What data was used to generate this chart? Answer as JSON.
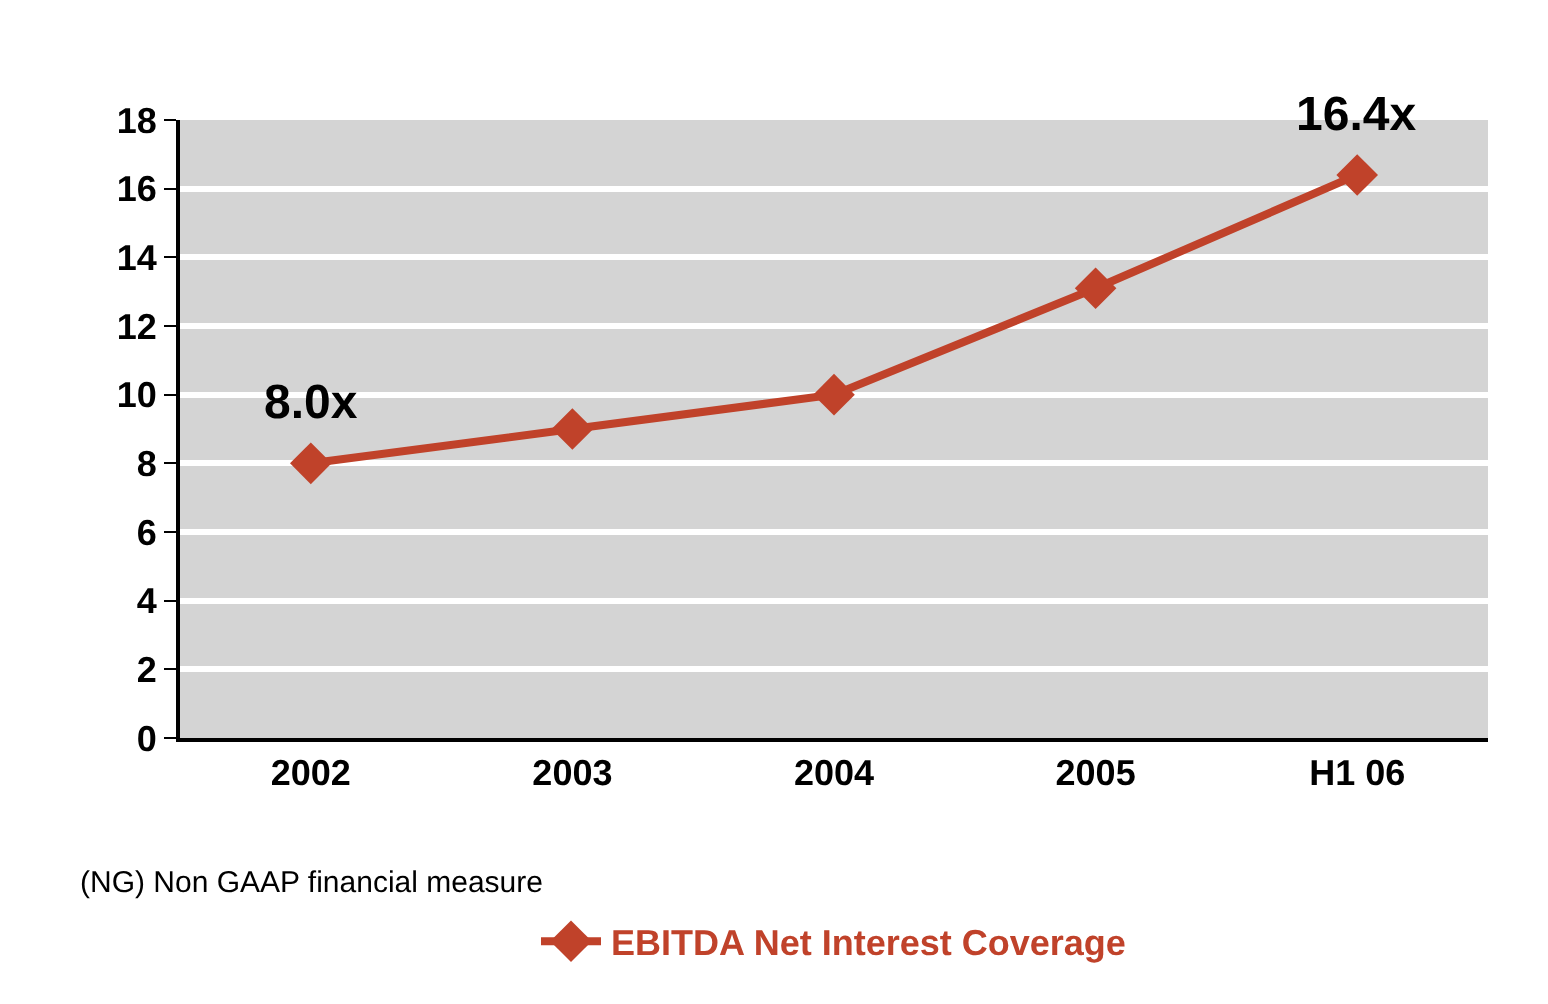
{
  "chart_data": {
    "type": "line",
    "categories": [
      "2002",
      "2003",
      "2004",
      "2005",
      "H1 06"
    ],
    "series": [
      {
        "name": "EBITDA Net Interest Coverage",
        "color": "#c0422a",
        "values": [
          8.0,
          9.0,
          10.0,
          13.1,
          16.4
        ]
      }
    ],
    "ylim": [
      0,
      18
    ],
    "yticks": [
      0,
      2,
      4,
      6,
      8,
      10,
      12,
      14,
      16,
      18
    ],
    "grid": "y",
    "legend": "bottom",
    "marker": "diamond",
    "line_style": "solid",
    "annotations": [
      {
        "text": "8.0x",
        "x": "2002",
        "y": 8.0
      },
      {
        "text": "16.4x",
        "x": "H1 06",
        "y": 16.4
      },
      "(NG) Non GAAP financial measure"
    ]
  }
}
